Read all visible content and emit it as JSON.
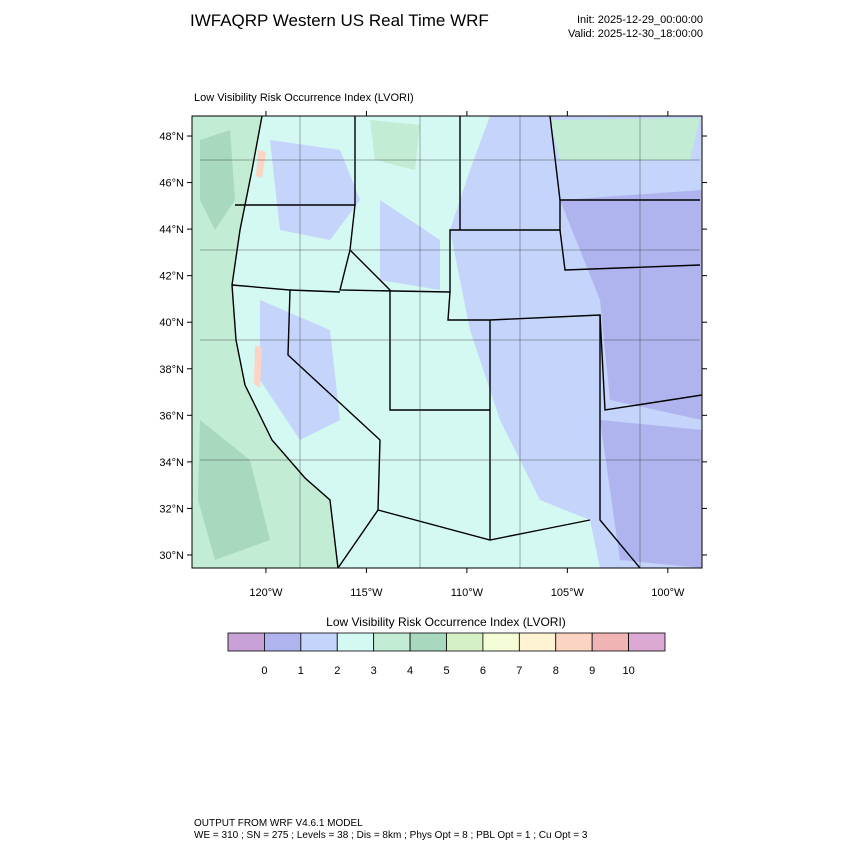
{
  "header": {
    "title": "IWFAQRP Western US Real Time WRF",
    "init": "Init: 2025-12-29_00:00:00",
    "valid": "Valid: 2025-12-30_18:00:00"
  },
  "map": {
    "subtitle": "Low Visibility Risk Occurrence Index  (LVORI)",
    "lat_range": [
      29.44,
      48.86
    ],
    "lon_range": [
      -123.68,
      -98.3
    ],
    "lat_ticks": [
      {
        "value": 48,
        "label": "48°N"
      },
      {
        "value": 46,
        "label": "46°N"
      },
      {
        "value": 44,
        "label": "44°N"
      },
      {
        "value": 42,
        "label": "42°N"
      },
      {
        "value": 40,
        "label": "40°N"
      },
      {
        "value": 38,
        "label": "38°N"
      },
      {
        "value": 36,
        "label": "36°N"
      },
      {
        "value": 34,
        "label": "34°N"
      },
      {
        "value": 32,
        "label": "32°N"
      },
      {
        "value": 30,
        "label": "30°N"
      }
    ],
    "lon_ticks": [
      {
        "value": -120,
        "label": "120°W"
      },
      {
        "value": -115,
        "label": "115°W"
      },
      {
        "value": -110,
        "label": "110°W"
      },
      {
        "value": -105,
        "label": "105°W"
      },
      {
        "value": -100,
        "label": "100°W"
      }
    ]
  },
  "colorbar": {
    "title": "Low Visibility Risk Occurrence Index  (LVORI)",
    "colors": [
      "#c8a2d6",
      "#b0b4ee",
      "#c4d4fa",
      "#d4f8f2",
      "#c2ecd4",
      "#a8d8be",
      "#d4f0c4",
      "#f4fcd8",
      "#fef4d4",
      "#fcd4c4",
      "#f0b4b4",
      "#dca8d4"
    ],
    "labels": [
      0,
      1,
      2,
      3,
      4,
      5,
      6,
      7,
      8,
      9,
      10
    ]
  },
  "footer": {
    "line1": "OUTPUT FROM WRF V4.6.1 MODEL",
    "line2": "WE = 310 ; SN = 275 ; Levels = 38 ; Dis = 8km ; Phys Opt = 8 ; PBL Opt = 1 ; Cu Opt = 3"
  }
}
